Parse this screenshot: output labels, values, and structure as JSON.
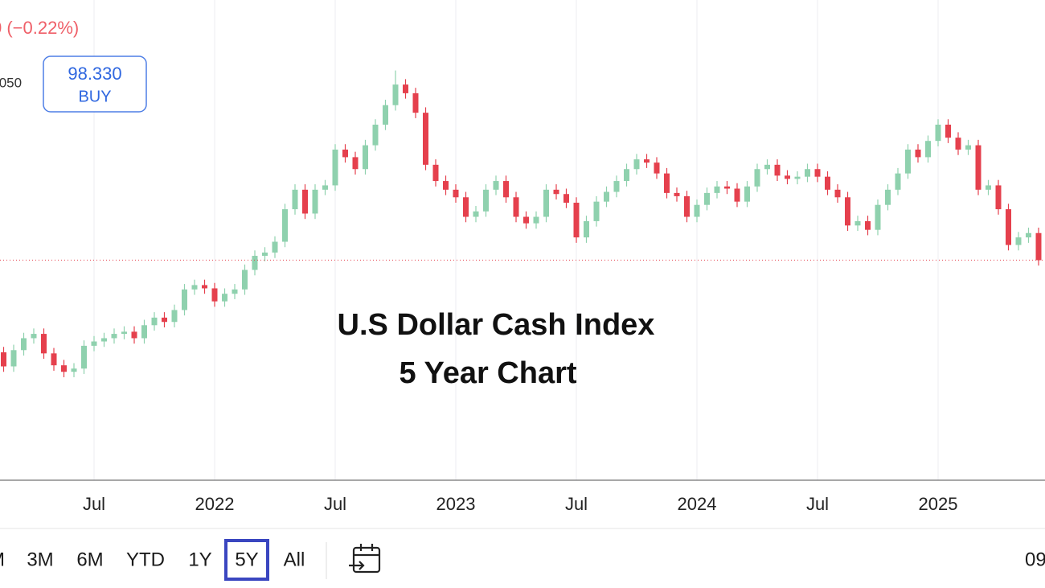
{
  "header": {
    "change": "0 (−0.22%)",
    "price_fragment": ".050",
    "buy_price": "98.330",
    "buy_label": "BUY"
  },
  "chart_data": {
    "type": "candlestick",
    "annotation": [
      "U.S Dollar Cash Index",
      "5 Year Chart"
    ],
    "up_color": "#8fd1ae",
    "down_color": "#e5404d",
    "ylim": [
      78,
      122.3
    ],
    "categories": [
      null,
      null,
      null,
      null,
      null,
      null,
      null,
      null,
      null,
      "Jul",
      null,
      null,
      null,
      null,
      null,
      null,
      null,
      null,
      null,
      null,
      null,
      "2022",
      null,
      null,
      null,
      null,
      null,
      null,
      null,
      null,
      null,
      null,
      null,
      "Jul",
      null,
      null,
      null,
      null,
      null,
      null,
      null,
      null,
      null,
      null,
      null,
      "2023",
      null,
      null,
      null,
      null,
      null,
      null,
      null,
      null,
      null,
      null,
      null,
      "Jul",
      null,
      null,
      null,
      null,
      null,
      null,
      null,
      null,
      null,
      null,
      null,
      "2024",
      null,
      null,
      null,
      null,
      null,
      null,
      null,
      null,
      null,
      null,
      null,
      "Jul",
      null,
      null,
      null,
      null,
      null,
      null,
      null,
      null,
      null,
      null,
      null,
      "2025",
      null,
      null,
      null,
      null,
      null,
      null,
      null,
      null,
      null,
      null
    ],
    "open": [
      89.8,
      88.5,
      90.0,
      91.1,
      91.5,
      89.7,
      88.6,
      88.0,
      88.3,
      90.4,
      90.8,
      91.1,
      91.5,
      91.7,
      91.1,
      92.3,
      93.0,
      92.6,
      93.7,
      95.6,
      96.0,
      95.7,
      94.5,
      95.2,
      95.6,
      97.4,
      98.7,
      99.0,
      100.0,
      103.0,
      104.8,
      102.6,
      104.8,
      105.2,
      108.5,
      107.8,
      106.7,
      108.9,
      110.8,
      112.6,
      114.5,
      113.7,
      111.9,
      107.1,
      105.6,
      104.8,
      104.1,
      102.3,
      102.8,
      104.8,
      105.6,
      104.1,
      102.3,
      101.7,
      102.3,
      104.8,
      104.4,
      103.6,
      100.4,
      101.9,
      103.7,
      104.6,
      105.6,
      106.7,
      107.6,
      107.3,
      106.3,
      104.5,
      104.2,
      102.3,
      103.4,
      104.5,
      105.1,
      104.9,
      103.7,
      105.1,
      106.7,
      107.1,
      106.1,
      105.8,
      106.0,
      106.7,
      106.0,
      104.8,
      104.1,
      101.5,
      101.9,
      101.1,
      103.4,
      104.8,
      106.3,
      108.5,
      107.8,
      109.3,
      110.8,
      109.6,
      108.5,
      108.9,
      104.8,
      105.2,
      103.0,
      99.7,
      100.4,
      100.8
    ],
    "high": [
      90.3,
      90.5,
      91.6,
      92.0,
      92.0,
      90.2,
      89.1,
      88.8,
      90.9,
      91.3,
      91.6,
      92.0,
      92.2,
      92.2,
      92.8,
      93.5,
      93.5,
      94.2,
      96.1,
      96.5,
      96.5,
      96.2,
      95.7,
      96.1,
      97.9,
      99.2,
      99.5,
      100.5,
      103.5,
      105.3,
      105.3,
      105.3,
      105.7,
      109.0,
      109.0,
      108.3,
      109.4,
      111.3,
      113.1,
      115.8,
      115.0,
      114.2,
      112.4,
      107.6,
      106.1,
      105.3,
      104.6,
      103.3,
      105.3,
      106.1,
      106.1,
      104.6,
      102.8,
      102.8,
      105.3,
      105.3,
      104.9,
      104.1,
      102.4,
      104.2,
      105.1,
      106.1,
      107.2,
      108.1,
      108.1,
      107.8,
      106.8,
      105.0,
      104.7,
      103.9,
      105.0,
      105.6,
      105.6,
      105.4,
      105.6,
      107.2,
      107.6,
      107.6,
      106.6,
      106.5,
      107.2,
      107.2,
      106.5,
      105.3,
      104.6,
      102.4,
      102.4,
      103.9,
      105.3,
      106.8,
      109.0,
      109.0,
      109.8,
      111.3,
      111.3,
      110.1,
      109.4,
      109.4,
      105.7,
      105.7,
      103.5,
      100.9,
      101.3,
      101.3
    ],
    "low": [
      88.0,
      88.0,
      89.5,
      90.6,
      89.2,
      88.1,
      87.5,
      87.5,
      87.8,
      89.9,
      90.3,
      90.6,
      91.0,
      90.6,
      90.6,
      91.8,
      92.1,
      92.1,
      93.2,
      95.1,
      95.2,
      94.0,
      94.0,
      94.7,
      95.1,
      96.9,
      98.2,
      98.5,
      99.5,
      102.5,
      102.1,
      102.1,
      104.3,
      104.7,
      107.3,
      106.2,
      106.2,
      108.4,
      110.3,
      112.1,
      113.2,
      111.4,
      106.6,
      105.1,
      104.3,
      103.6,
      101.8,
      101.8,
      102.3,
      104.3,
      103.6,
      101.8,
      101.2,
      101.2,
      101.8,
      103.9,
      103.1,
      99.9,
      99.9,
      101.4,
      103.2,
      104.1,
      105.1,
      106.2,
      106.8,
      105.8,
      104.0,
      103.7,
      101.8,
      101.8,
      102.9,
      104.0,
      104.4,
      103.2,
      103.2,
      104.6,
      106.2,
      105.6,
      105.3,
      105.3,
      105.5,
      105.5,
      104.3,
      103.6,
      101.0,
      101.0,
      100.6,
      100.6,
      102.9,
      104.3,
      105.8,
      107.3,
      107.3,
      108.8,
      109.1,
      108.0,
      108.0,
      104.3,
      104.3,
      102.5,
      99.2,
      99.2,
      99.9,
      97.8
    ],
    "close": [
      88.5,
      90.0,
      91.1,
      91.5,
      89.7,
      88.6,
      88.0,
      88.3,
      90.4,
      90.8,
      91.1,
      91.5,
      91.7,
      91.1,
      92.3,
      93.0,
      92.6,
      93.7,
      95.6,
      96.0,
      95.7,
      94.5,
      95.2,
      95.6,
      97.4,
      98.7,
      99.0,
      100.0,
      103.0,
      104.8,
      102.6,
      104.8,
      105.2,
      108.5,
      107.8,
      106.7,
      108.9,
      110.8,
      112.6,
      114.5,
      113.7,
      111.9,
      107.1,
      105.6,
      104.8,
      104.1,
      102.3,
      102.8,
      104.8,
      105.6,
      104.1,
      102.3,
      101.7,
      102.3,
      104.8,
      104.4,
      103.6,
      100.4,
      101.9,
      103.7,
      104.6,
      105.6,
      106.7,
      107.6,
      107.3,
      106.3,
      104.5,
      104.2,
      102.3,
      103.4,
      104.5,
      105.1,
      104.9,
      103.7,
      105.1,
      106.7,
      107.1,
      106.1,
      105.8,
      106.0,
      106.7,
      106.0,
      104.8,
      104.1,
      101.5,
      101.9,
      101.1,
      103.4,
      104.8,
      106.3,
      108.5,
      107.8,
      109.3,
      110.8,
      109.6,
      108.5,
      108.9,
      104.8,
      105.2,
      103.0,
      99.7,
      100.4,
      100.8,
      98.3
    ]
  },
  "toolbar": {
    "ranges": [
      "M",
      "3M",
      "6M",
      "YTD",
      "1Y",
      "5Y",
      "All"
    ],
    "right_fragment": "09"
  }
}
